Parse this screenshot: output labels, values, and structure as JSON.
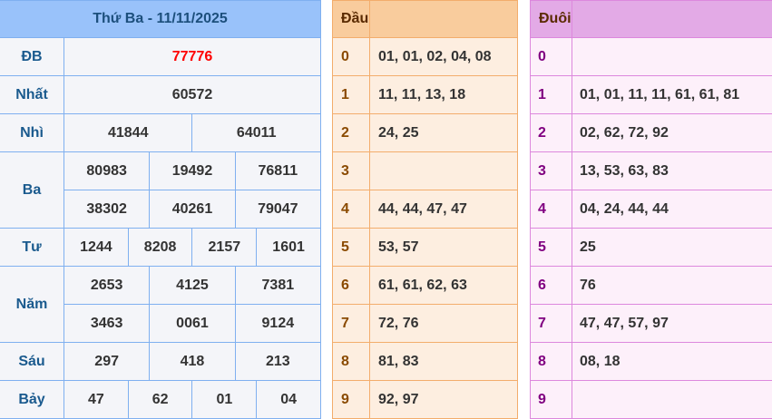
{
  "results": {
    "title": "Thứ Ba - 11/11/2025",
    "prizes": {
      "db": {
        "label": "ĐB",
        "values": [
          "77776"
        ]
      },
      "nhat": {
        "label": "Nhất",
        "values": [
          "60572"
        ]
      },
      "nhi": {
        "label": "Nhì",
        "values": [
          "41844",
          "64011"
        ]
      },
      "ba": {
        "label": "Ba",
        "values": [
          "80983",
          "19492",
          "76811",
          "38302",
          "40261",
          "79047"
        ]
      },
      "tu": {
        "label": "Tư",
        "values": [
          "1244",
          "8208",
          "2157",
          "1601"
        ]
      },
      "nam": {
        "label": "Năm",
        "values": [
          "2653",
          "4125",
          "7381",
          "3463",
          "0061",
          "9124"
        ]
      },
      "sau": {
        "label": "Sáu",
        "values": [
          "297",
          "418",
          "213"
        ]
      },
      "bay": {
        "label": "Bảy",
        "values": [
          "47",
          "62",
          "01",
          "04"
        ]
      }
    },
    "special_color": "#ff0000"
  },
  "dau": {
    "header": "Đầu",
    "rows": [
      {
        "digit": "0",
        "values": "01, 01, 02, 04, 08"
      },
      {
        "digit": "1",
        "values": "11, 11, 13, 18"
      },
      {
        "digit": "2",
        "values": "24, 25"
      },
      {
        "digit": "3",
        "values": ""
      },
      {
        "digit": "4",
        "values": "44, 44, 47, 47"
      },
      {
        "digit": "5",
        "values": "53, 57"
      },
      {
        "digit": "6",
        "values": "61, 61, 62, 63"
      },
      {
        "digit": "7",
        "values": "72, 76"
      },
      {
        "digit": "8",
        "values": "81, 83"
      },
      {
        "digit": "9",
        "values": "92, 97"
      }
    ]
  },
  "duoi": {
    "header": "Đuôi",
    "rows": [
      {
        "digit": "0",
        "values": ""
      },
      {
        "digit": "1",
        "values": "01, 01, 11, 11, 61, 61, 81"
      },
      {
        "digit": "2",
        "values": "02, 62, 72, 92"
      },
      {
        "digit": "3",
        "values": "13, 53, 63, 83"
      },
      {
        "digit": "4",
        "values": "04, 24, 44, 44"
      },
      {
        "digit": "5",
        "values": "25"
      },
      {
        "digit": "6",
        "values": "76"
      },
      {
        "digit": "7",
        "values": "47, 47, 57, 97"
      },
      {
        "digit": "8",
        "values": "08, 18"
      },
      {
        "digit": "9",
        "values": ""
      }
    ]
  }
}
